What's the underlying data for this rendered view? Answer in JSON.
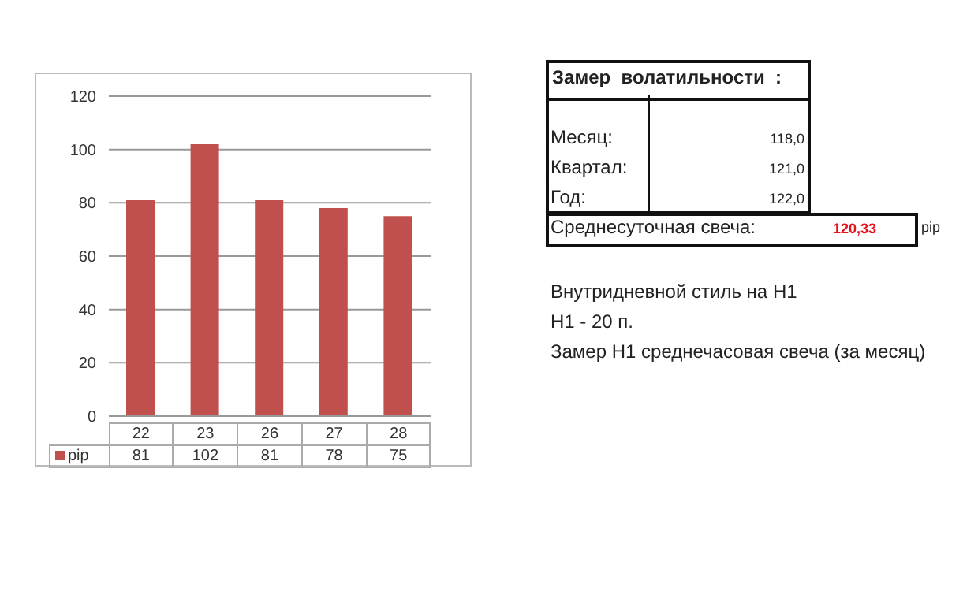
{
  "chart_data": [
    {
      "type": "bar",
      "categories": [
        "22",
        "23",
        "26",
        "27",
        "28"
      ],
      "series": [
        {
          "name": "pip",
          "color": "#c0504d",
          "values": [
            81,
            102,
            81,
            78,
            75
          ]
        }
      ],
      "ylim": [
        0,
        120
      ],
      "yticks": [
        0,
        20,
        40,
        60,
        80,
        100,
        120
      ],
      "grid": "y",
      "legend": "bottom",
      "data_labels": true
    },
    {
      "type": "other",
      "annotations": [
        "Замер  волатильности  :",
        "Месяц:",
        "118,0",
        "Квартал:",
        "121,0",
        "Год:",
        "122,0",
        "Среднесуточная свеча:",
        "120,33",
        "pip",
        "Внутридневной стиль на H1",
        "H1 - 20 п.",
        "Замер H1 среднечасовая свеча (за месяц)"
      ]
    }
  ]
}
